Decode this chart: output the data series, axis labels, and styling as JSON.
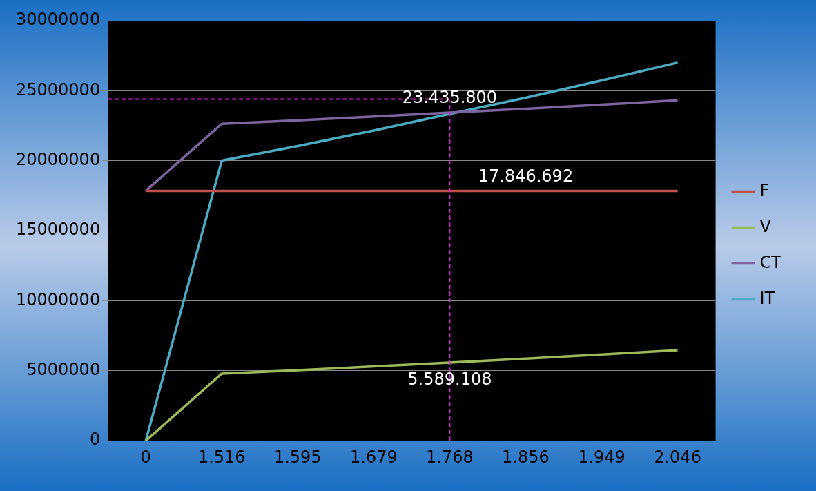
{
  "chart_data": {
    "type": "line",
    "categories": [
      "0",
      "1.516",
      "1.595",
      "1.679",
      "1.768",
      "1.856",
      "1.949",
      "2.046"
    ],
    "series": [
      {
        "name": "F",
        "color": "#c0504d",
        "values": [
          17846692,
          17846692,
          17846692,
          17846692,
          17846692,
          17846692,
          17846692,
          17846692
        ]
      },
      {
        "name": "V",
        "color": "#9bbb59",
        "values": [
          0,
          4792000,
          5042000,
          5307000,
          5589108,
          5867000,
          6161000,
          6467000
        ]
      },
      {
        "name": "CT",
        "color": "#8064a2",
        "values": [
          17846692,
          22639000,
          22889000,
          23154000,
          23435800,
          23714000,
          24008000,
          24314000
        ]
      },
      {
        "name": "IT",
        "color": "#4bacc6",
        "values": [
          0,
          20010000,
          21050000,
          22160000,
          23340000,
          24500000,
          25730000,
          27010000
        ]
      }
    ],
    "ylim": [
      0,
      30000000
    ],
    "yticks": [
      0,
      5000000,
      10000000,
      15000000,
      20000000,
      25000000,
      30000000
    ],
    "grid": "y",
    "legend": "right",
    "marker": "none",
    "line_style": "solid",
    "ref_lines": [
      {
        "axis": "x",
        "value": "1.768",
        "color": "#e020e0",
        "line_style": "dashed"
      },
      {
        "axis": "y",
        "value": 24400000,
        "color": "#e020e0",
        "line_style": "dashed"
      }
    ],
    "annotations": [
      {
        "text": "23.435.800",
        "x": "1.768",
        "y": 23435800
      },
      {
        "text": "17.846.692",
        "x": "1.856",
        "y": 17846692
      },
      {
        "text": "5.589.108",
        "x": "1.768",
        "y": 5589108
      }
    ]
  }
}
